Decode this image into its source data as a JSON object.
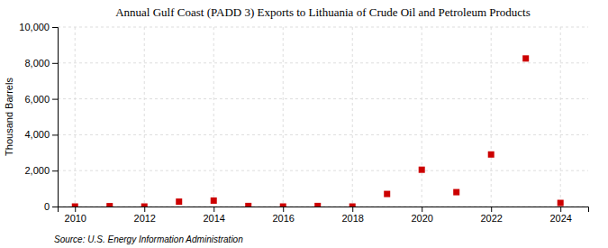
{
  "chart_data": {
    "type": "scatter",
    "title": "Annual Gulf Coast (PADD 3) Exports to Lithuania of Crude Oil and Petroleum Products",
    "ylabel": "Thousand Barrels",
    "source": "Source: U.S. Energy Information Administration",
    "x": [
      2010,
      2011,
      2012,
      2013,
      2014,
      2015,
      2016,
      2017,
      2018,
      2019,
      2020,
      2021,
      2022,
      2023,
      2024
    ],
    "values": [
      0,
      20,
      0,
      270,
      330,
      30,
      0,
      30,
      0,
      700,
      2050,
      800,
      2900,
      8250,
      200
    ],
    "color": "#cc0000",
    "marker": "square",
    "xlim": [
      2009.5,
      2024.8
    ],
    "ylim": [
      0,
      10000
    ],
    "xticks": [
      2010,
      2012,
      2014,
      2016,
      2018,
      2020,
      2022,
      2024
    ],
    "yticks": [
      0,
      {
        "value": 2000,
        "label": "2,000"
      },
      {
        "value": 4000,
        "label": "4,000"
      },
      {
        "value": 6000,
        "label": "6,000"
      },
      {
        "value": 8000,
        "label": "8,000"
      },
      {
        "value": 10000,
        "label": "10,000"
      }
    ],
    "grid": true
  }
}
